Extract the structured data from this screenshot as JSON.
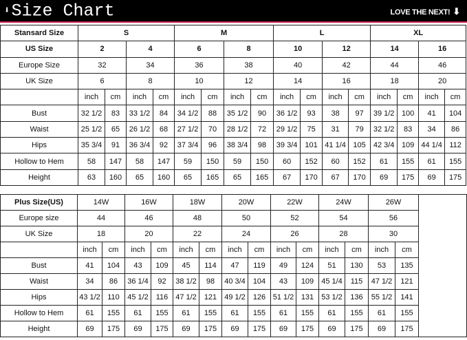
{
  "header": {
    "title": "Size Chart",
    "tagline": "LOVE THE NEXT!",
    "accent": "#c0224a"
  },
  "standard_table": {
    "header_label": "Stansard Size",
    "groups": [
      "S",
      "M",
      "L",
      "XL"
    ],
    "us_label": "US Size",
    "us": [
      "2",
      "4",
      "6",
      "8",
      "10",
      "12",
      "14",
      "16"
    ],
    "europe_label": "Europe Size",
    "europe": [
      "32",
      "34",
      "36",
      "38",
      "40",
      "42",
      "44",
      "46"
    ],
    "uk_label": "UK Size",
    "uk": [
      "6",
      "8",
      "10",
      "12",
      "14",
      "16",
      "18",
      "20"
    ],
    "unit_inch": "inch",
    "unit_cm": "cm",
    "rows": [
      {
        "label": "Bust",
        "values": [
          "32 1/2",
          "83",
          "33 1/2",
          "84",
          "34 1/2",
          "88",
          "35 1/2",
          "90",
          "36 1/2",
          "93",
          "38",
          "97",
          "39 1/2",
          "100",
          "41",
          "104"
        ]
      },
      {
        "label": "Waist",
        "values": [
          "25 1/2",
          "65",
          "26 1/2",
          "68",
          "27 1/2",
          "70",
          "28 1/2",
          "72",
          "29 1/2",
          "75",
          "31",
          "79",
          "32 1/2",
          "83",
          "34",
          "86"
        ]
      },
      {
        "label": "Hips",
        "values": [
          "35 3/4",
          "91",
          "36 3/4",
          "92",
          "37 3/4",
          "96",
          "38 3/4",
          "98",
          "39 3/4",
          "101",
          "41 1/4",
          "105",
          "42 3/4",
          "109",
          "44 1/4",
          "112"
        ]
      },
      {
        "label": "Hollow to Hem",
        "values": [
          "58",
          "147",
          "58",
          "147",
          "59",
          "150",
          "59",
          "150",
          "60",
          "152",
          "60",
          "152",
          "61",
          "155",
          "61",
          "155"
        ]
      },
      {
        "label": "Height",
        "values": [
          "63",
          "160",
          "65",
          "160",
          "65",
          "165",
          "65",
          "165",
          "67",
          "170",
          "67",
          "170",
          "69",
          "175",
          "69",
          "175"
        ]
      }
    ]
  },
  "plus_table": {
    "header_label": "Plus Size(US)",
    "sizes": [
      "14W",
      "16W",
      "18W",
      "20W",
      "22W",
      "24W",
      "26W"
    ],
    "europe_label": "Europe size",
    "europe": [
      "44",
      "46",
      "48",
      "50",
      "52",
      "54",
      "56"
    ],
    "uk_label": "UK Size",
    "uk": [
      "18",
      "20",
      "22",
      "24",
      "26",
      "28",
      "30"
    ],
    "unit_inch": "inch",
    "unit_cm": "cm",
    "rows": [
      {
        "label": "Bust",
        "values": [
          "41",
          "104",
          "43",
          "109",
          "45",
          "114",
          "47",
          "119",
          "49",
          "124",
          "51",
          "130",
          "53",
          "135"
        ]
      },
      {
        "label": "Waist",
        "values": [
          "34",
          "86",
          "36 1/4",
          "92",
          "38 1/2",
          "98",
          "40 3/4",
          "104",
          "43",
          "109",
          "45 1/4",
          "115",
          "47 1/2",
          "121"
        ]
      },
      {
        "label": "Hips",
        "values": [
          "43 1/2",
          "110",
          "45 1/2",
          "116",
          "47 1/2",
          "121",
          "49 1/2",
          "126",
          "51 1/2",
          "131",
          "53 1/2",
          "136",
          "55 1/2",
          "141"
        ]
      },
      {
        "label": "Hollow to Hem",
        "values": [
          "61",
          "155",
          "61",
          "155",
          "61",
          "155",
          "61",
          "155",
          "61",
          "155",
          "61",
          "155",
          "61",
          "155"
        ]
      },
      {
        "label": "Height",
        "values": [
          "69",
          "175",
          "69",
          "175",
          "69",
          "175",
          "69",
          "175",
          "69",
          "175",
          "69",
          "175",
          "69",
          "175"
        ]
      }
    ]
  }
}
